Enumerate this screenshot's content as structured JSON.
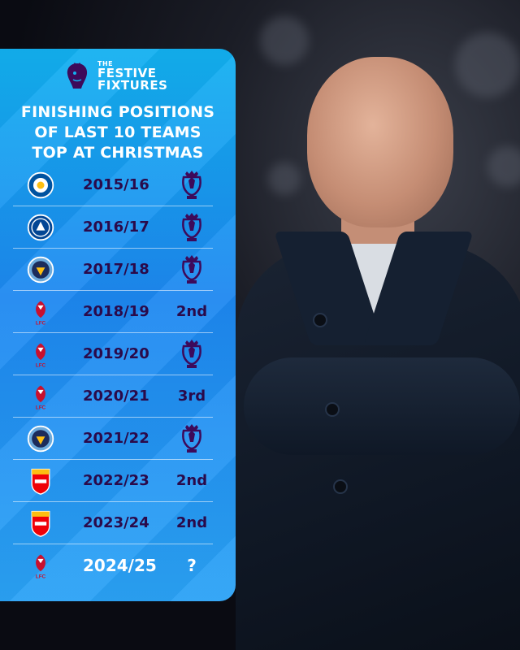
{
  "brand": {
    "the_label": "THE",
    "line1": "FESTIVE",
    "line2": "FIXTURES",
    "logo_icon": "premier-league-lion-icon"
  },
  "heading": {
    "line1": "FINISHING POSITIONS",
    "line2": "OF LAST 10 TEAMS",
    "line3": "TOP AT CHRISTMAS"
  },
  "colors": {
    "panel_top": "#12b0f0",
    "panel_mid": "#1d87f0",
    "text_dark": "#2a0a4a",
    "text_light": "#ffffff"
  },
  "rows": [
    {
      "crest": "leicester-city-crest-icon",
      "season": "2015/16",
      "result_icon": "premier-league-trophy-icon",
      "result_text": ""
    },
    {
      "crest": "chelsea-crest-icon",
      "season": "2016/17",
      "result_icon": "premier-league-trophy-icon",
      "result_text": ""
    },
    {
      "crest": "manchester-city-crest-icon",
      "season": "2017/18",
      "result_icon": "premier-league-trophy-icon",
      "result_text": ""
    },
    {
      "crest": "liverpool-crest-icon",
      "season": "2018/19",
      "result_icon": "",
      "result_text": "2nd"
    },
    {
      "crest": "liverpool-crest-icon",
      "season": "2019/20",
      "result_icon": "premier-league-trophy-icon",
      "result_text": ""
    },
    {
      "crest": "liverpool-crest-icon",
      "season": "2020/21",
      "result_icon": "",
      "result_text": "3rd"
    },
    {
      "crest": "manchester-city-crest-icon",
      "season": "2021/22",
      "result_icon": "premier-league-trophy-icon",
      "result_text": ""
    },
    {
      "crest": "arsenal-crest-icon",
      "season": "2022/23",
      "result_icon": "",
      "result_text": "2nd"
    },
    {
      "crest": "arsenal-crest-icon",
      "season": "2023/24",
      "result_icon": "",
      "result_text": "2nd"
    },
    {
      "crest": "liverpool-crest-icon",
      "season": "2024/25",
      "result_icon": "",
      "result_text": "?"
    }
  ],
  "crest_labels": {
    "liverpool": "LFC"
  }
}
